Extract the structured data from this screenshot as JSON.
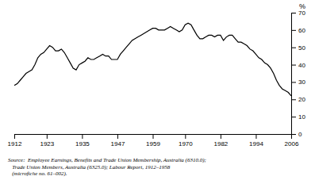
{
  "chart_data": {
    "type": "line",
    "ylabel": "%",
    "x": [
      1912,
      1913,
      1914,
      1915,
      1916,
      1917,
      1918,
      1919,
      1920,
      1921,
      1922,
      1923,
      1924,
      1925,
      1926,
      1927,
      1928,
      1929,
      1930,
      1931,
      1932,
      1933,
      1934,
      1935,
      1936,
      1937,
      1938,
      1939,
      1940,
      1941,
      1942,
      1943,
      1944,
      1945,
      1946,
      1947,
      1948,
      1949,
      1950,
      1951,
      1952,
      1953,
      1954,
      1955,
      1956,
      1957,
      1958,
      1959,
      1960,
      1961,
      1962,
      1963,
      1964,
      1965,
      1966,
      1967,
      1968,
      1969,
      1970,
      1971,
      1972,
      1973,
      1974,
      1975,
      1976,
      1977,
      1978,
      1979,
      1980,
      1981,
      1982,
      1983,
      1984,
      1985,
      1986,
      1987,
      1988,
      1989,
      1990,
      1991,
      1992,
      1993,
      1994,
      1995,
      1996,
      1997,
      1998,
      1999,
      2000,
      2001,
      2002,
      2003,
      2004,
      2005,
      2006
    ],
    "values": [
      28,
      29,
      31,
      33,
      35,
      36,
      37,
      40,
      44,
      46,
      47,
      49,
      51,
      50,
      48,
      48,
      49,
      47,
      44,
      41,
      38,
      37,
      40,
      41,
      42,
      44,
      43,
      43,
      44,
      45,
      46,
      45,
      45,
      43,
      43,
      43,
      46,
      48,
      50,
      52,
      54,
      55,
      56,
      57,
      58,
      59,
      60,
      61,
      61,
      60,
      60,
      60,
      61,
      62,
      61,
      60,
      59,
      60,
      63,
      64,
      63,
      60,
      57,
      55,
      55,
      56,
      57,
      57,
      56,
      57,
      57,
      54,
      56,
      57,
      57,
      55,
      53,
      53,
      52,
      51,
      49,
      48,
      46,
      44,
      43,
      41,
      40,
      38,
      35,
      31,
      28,
      26,
      25,
      24,
      22
    ],
    "color": "#000000",
    "xlim": [
      1912,
      2006
    ],
    "xticks": [
      1912,
      1923,
      1935,
      1947,
      1959,
      1970,
      1982,
      1994,
      2006
    ],
    "ylim": [
      0,
      70
    ],
    "yticks": [
      0,
      10,
      20,
      30,
      40,
      50,
      60,
      70
    ],
    "grid": false,
    "annotations": [
      "Source:  Employee Earnings, Benefits and Trade Union Membership, Australia (6310.0);",
      "   Trade Union Members, Australia (6325.0); Labour Report, 1912–1958",
      "   (microfiche no. 61–002)."
    ]
  }
}
